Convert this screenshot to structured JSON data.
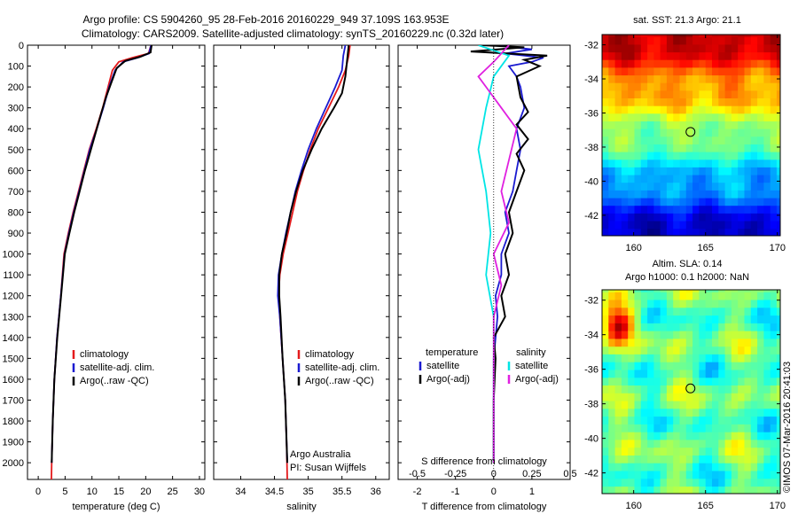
{
  "header": {
    "line1": "Argo profile: CS 5904260_95 28-Feb-2016 20160229_949 37.109S 163.953E",
    "line2": "Climatology: CARS2009. Satellite-adjusted climatology: synTS_20160229.nc (0.32d later)"
  },
  "colors": {
    "climatology": "#e41a1c",
    "satellite": "#1a1ad0",
    "argo": "#000000",
    "salinity_sat": "#00e5e5",
    "salinity_argo": "#e020e0"
  },
  "chart_data": [
    {
      "type": "line",
      "id": "temperature",
      "xlabel": "temperature (deg C)",
      "ylabel": "",
      "xlim": [
        -2,
        31
      ],
      "ylim": [
        2080,
        0
      ],
      "xticks": [
        0,
        5,
        10,
        15,
        20,
        25,
        30
      ],
      "yticks": [
        0,
        100,
        200,
        300,
        400,
        500,
        600,
        700,
        800,
        900,
        1000,
        1100,
        1200,
        1300,
        1400,
        1500,
        1600,
        1700,
        1800,
        1900,
        2000
      ],
      "legend": [
        "climatology",
        "satellite-adj. clim.",
        "Argo(..raw -QC)"
      ],
      "series": [
        {
          "name": "climatology",
          "color": "#e41a1c",
          "points": [
            [
              21.0,
              0
            ],
            [
              20.5,
              40
            ],
            [
              17.5,
              60
            ],
            [
              15.0,
              80
            ],
            [
              13.8,
              120
            ],
            [
              13.0,
              200
            ],
            [
              12.0,
              300
            ],
            [
              10.8,
              400
            ],
            [
              9.5,
              500
            ],
            [
              8.5,
              600
            ],
            [
              7.5,
              700
            ],
            [
              6.5,
              800
            ],
            [
              5.6,
              900
            ],
            [
              4.8,
              1000
            ],
            [
              4.2,
              1200
            ],
            [
              3.5,
              1400
            ],
            [
              3.0,
              1600
            ],
            [
              2.7,
              1800
            ],
            [
              2.5,
              2000
            ],
            [
              2.45,
              2080
            ]
          ]
        },
        {
          "name": "satellite-adj. clim.",
          "color": "#1a1ad0",
          "points": [
            [
              21.0,
              0
            ],
            [
              20.6,
              40
            ],
            [
              18.5,
              60
            ],
            [
              15.8,
              80
            ],
            [
              14.3,
              120
            ],
            [
              13.2,
              200
            ],
            [
              12.1,
              300
            ],
            [
              10.9,
              400
            ],
            [
              9.6,
              500
            ],
            [
              8.6,
              600
            ],
            [
              7.6,
              700
            ],
            [
              6.6,
              800
            ],
            [
              5.7,
              900
            ],
            [
              4.9,
              1000
            ],
            [
              4.2,
              1200
            ],
            [
              3.5,
              1400
            ],
            [
              3.0,
              1600
            ],
            [
              2.7,
              1800
            ],
            [
              2.5,
              2000
            ]
          ]
        },
        {
          "name": "Argo(..raw -QC)",
          "color": "#000000",
          "points": [
            [
              21.1,
              0
            ],
            [
              20.9,
              35
            ],
            [
              19.0,
              55
            ],
            [
              16.2,
              75
            ],
            [
              14.6,
              110
            ],
            [
              13.6,
              180
            ],
            [
              12.6,
              250
            ],
            [
              11.8,
              320
            ],
            [
              10.9,
              400
            ],
            [
              9.8,
              500
            ],
            [
              8.7,
              600
            ],
            [
              7.7,
              700
            ],
            [
              6.7,
              800
            ],
            [
              5.8,
              900
            ],
            [
              4.95,
              1000
            ],
            [
              4.25,
              1200
            ],
            [
              3.55,
              1400
            ],
            [
              3.0,
              1600
            ],
            [
              2.7,
              1800
            ],
            [
              2.5,
              2000
            ]
          ]
        }
      ]
    },
    {
      "type": "line",
      "id": "salinity",
      "xlabel": "salinity",
      "ylabel": "",
      "xlim": [
        33.6,
        36.2
      ],
      "ylim": [
        2080,
        0
      ],
      "xticks": [
        34,
        34.5,
        35,
        35.5,
        36
      ],
      "legend": [
        "climatology",
        "satellite-adj. clim.",
        "Argo(..raw -QC)"
      ],
      "annotation": [
        "Argo Australia",
        "PI: Susan Wijffels"
      ],
      "series": [
        {
          "name": "climatology",
          "color": "#e41a1c",
          "points": [
            [
              35.62,
              0
            ],
            [
              35.6,
              50
            ],
            [
              35.55,
              120
            ],
            [
              35.45,
              200
            ],
            [
              35.3,
              300
            ],
            [
              35.15,
              400
            ],
            [
              35.03,
              500
            ],
            [
              34.93,
              600
            ],
            [
              34.84,
              700
            ],
            [
              34.77,
              800
            ],
            [
              34.7,
              900
            ],
            [
              34.63,
              1000
            ],
            [
              34.58,
              1100
            ],
            [
              34.56,
              1200
            ],
            [
              34.58,
              1300
            ],
            [
              34.62,
              1500
            ],
            [
              34.66,
              1700
            ],
            [
              34.68,
              1900
            ],
            [
              34.69,
              2080
            ]
          ]
        },
        {
          "name": "satellite-adj. clim.",
          "color": "#1a1ad0",
          "points": [
            [
              35.55,
              0
            ],
            [
              35.52,
              50
            ],
            [
              35.5,
              120
            ],
            [
              35.4,
              200
            ],
            [
              35.26,
              300
            ],
            [
              35.12,
              400
            ],
            [
              35.0,
              500
            ],
            [
              34.9,
              600
            ],
            [
              34.81,
              700
            ],
            [
              34.74,
              800
            ],
            [
              34.67,
              900
            ],
            [
              34.61,
              1000
            ],
            [
              34.56,
              1100
            ],
            [
              34.55,
              1200
            ],
            [
              34.58,
              1300
            ],
            [
              34.62,
              1500
            ],
            [
              34.66,
              1700
            ],
            [
              34.68,
              1900
            ],
            [
              34.69,
              2000
            ]
          ]
        },
        {
          "name": "Argo(..raw -QC)",
          "color": "#000000",
          "points": [
            [
              35.6,
              0
            ],
            [
              35.58,
              60
            ],
            [
              35.55,
              150
            ],
            [
              35.5,
              230
            ],
            [
              35.38,
              300
            ],
            [
              35.2,
              400
            ],
            [
              35.05,
              500
            ],
            [
              34.92,
              600
            ],
            [
              34.82,
              700
            ],
            [
              34.74,
              800
            ],
            [
              34.68,
              900
            ],
            [
              34.61,
              1000
            ],
            [
              34.57,
              1100
            ],
            [
              34.57,
              1200
            ],
            [
              34.59,
              1300
            ],
            [
              34.62,
              1500
            ],
            [
              34.66,
              1700
            ],
            [
              34.68,
              1900
            ],
            [
              34.69,
              2000
            ]
          ]
        }
      ]
    },
    {
      "type": "line",
      "id": "difference",
      "xlabel": "T difference from climatology",
      "xlabel_top": "S difference from climatology",
      "xlim": [
        -2.5,
        2.0
      ],
      "ylim": [
        2080,
        0
      ],
      "xticks_T": [
        -2,
        -1,
        0,
        1
      ],
      "xticks_S": [
        -0.5,
        -0.25,
        0,
        0.25,
        0.5
      ],
      "legend_left_title": "temperature",
      "legend_left": [
        "satellite",
        "Argo(-adj)"
      ],
      "legend_right_title": "salinity",
      "legend_right": [
        "satellite",
        "Argo(-adj)"
      ],
      "series": [
        {
          "name": "T satellite",
          "color": "#1a1ad0",
          "points": [
            [
              0.0,
              0
            ],
            [
              1.0,
              20
            ],
            [
              0.3,
              40
            ],
            [
              1.3,
              60
            ],
            [
              1.0,
              80
            ],
            [
              0.4,
              100
            ],
            [
              0.6,
              150
            ],
            [
              0.7,
              200
            ],
            [
              0.8,
              300
            ],
            [
              0.6,
              400
            ],
            [
              0.7,
              500
            ],
            [
              0.6,
              600
            ],
            [
              0.5,
              700
            ],
            [
              0.3,
              800
            ],
            [
              0.4,
              900
            ],
            [
              0.2,
              1000
            ],
            [
              0.2,
              1100
            ],
            [
              0.05,
              1200
            ],
            [
              0.1,
              1300
            ],
            [
              0.0,
              1500
            ],
            [
              0.0,
              1700
            ],
            [
              0.0,
              2000
            ]
          ]
        },
        {
          "name": "T Argo(-adj)",
          "color": "#000000",
          "points": [
            [
              -0.3,
              0
            ],
            [
              0.8,
              10
            ],
            [
              -0.6,
              30
            ],
            [
              1.4,
              50
            ],
            [
              0.8,
              70
            ],
            [
              1.2,
              100
            ],
            [
              0.6,
              150
            ],
            [
              0.7,
              250
            ],
            [
              0.9,
              320
            ],
            [
              0.6,
              380
            ],
            [
              0.9,
              450
            ],
            [
              0.6,
              520
            ],
            [
              0.8,
              600
            ],
            [
              0.6,
              700
            ],
            [
              0.4,
              800
            ],
            [
              0.5,
              900
            ],
            [
              0.3,
              1000
            ],
            [
              0.4,
              1100
            ],
            [
              0.2,
              1200
            ],
            [
              0.3,
              1300
            ],
            [
              0.0,
              1400
            ],
            [
              0.05,
              1500
            ],
            [
              0.0,
              1700
            ],
            [
              0.0,
              2000
            ]
          ]
        },
        {
          "name": "S satellite",
          "color": "#00e5e5",
          "points": [
            [
              -0.1,
              0
            ],
            [
              0.1,
              50
            ],
            [
              0.0,
              150
            ],
            [
              -0.05,
              300
            ],
            [
              -0.1,
              500
            ],
            [
              -0.05,
              700
            ],
            [
              -0.02,
              900
            ],
            [
              -0.05,
              1100
            ],
            [
              0.0,
              1300
            ],
            [
              0.0,
              1500
            ],
            [
              0.0,
              2000
            ]
          ]
        },
        {
          "name": "S Argo(-adj)",
          "color": "#e020e0",
          "points": [
            [
              0.1,
              0
            ],
            [
              0.0,
              80
            ],
            [
              -0.1,
              150
            ],
            [
              -0.05,
              200
            ],
            [
              0.05,
              300
            ],
            [
              0.15,
              400
            ],
            [
              0.1,
              550
            ],
            [
              0.05,
              700
            ],
            [
              0.1,
              850
            ],
            [
              0.0,
              1000
            ],
            [
              0.05,
              1150
            ],
            [
              0.0,
              1300
            ],
            [
              0.0,
              1500
            ],
            [
              0.0,
              2000
            ]
          ]
        }
      ]
    },
    {
      "type": "heatmap",
      "id": "sst-map",
      "title": "sat. SST: 21.3 Argo: 21.1",
      "xlim": [
        157.8,
        170.2
      ],
      "ylim": [
        -43.2,
        -31.4
      ],
      "xticks": [
        160,
        165,
        170
      ],
      "yticks": [
        -32,
        -34,
        -36,
        -38,
        -40,
        -42
      ],
      "marker": [
        163.953,
        -37.109
      ]
    },
    {
      "type": "heatmap",
      "id": "sla-map",
      "title_line1": "Altim. SLA: 0.14",
      "title_line2": "Argo h1000: 0.1 h2000: NaN",
      "xlim": [
        157.8,
        170.2
      ],
      "ylim": [
        -43.2,
        -31.4
      ],
      "xticks": [
        160,
        165,
        170
      ],
      "yticks": [
        -32,
        -34,
        -36,
        -38,
        -40,
        -42
      ],
      "marker": [
        163.953,
        -37.109
      ]
    }
  ],
  "footer": {
    "credit": "©IMOS 07-Mar-2016 20:41:03"
  }
}
